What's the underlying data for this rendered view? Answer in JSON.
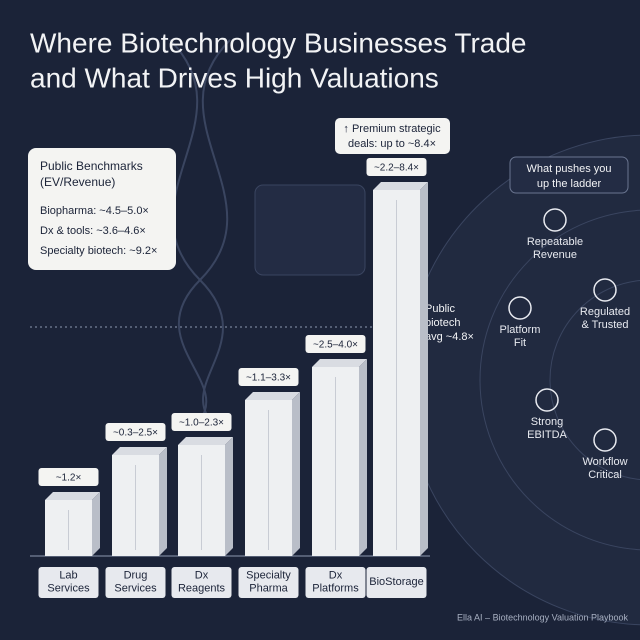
{
  "header": {
    "title_lines": [
      "Where Biotechnology Businesses Trade",
      "and What Drives High Valuations"
    ]
  },
  "benchmarks": {
    "title_lines": [
      "Public Benchmarks",
      "(EV/Revenue)"
    ],
    "rows": [
      "Biopharma: ~4.5–5.0×",
      "Dx & tools: ~3.6–4.6×",
      "Specialty biotech: ~9.2×"
    ]
  },
  "premium_callout": [
    "↑ Premium strategic",
    "deals: up to ~8.4×"
  ],
  "average_note": [
    "Public",
    "biotech",
    "avg ~4.8×"
  ],
  "segments": [
    {
      "name_lines": [
        "Lab",
        "Services"
      ],
      "range": "~1.2×"
    },
    {
      "name_lines": [
        "Drug",
        "Services"
      ],
      "range": "~0.3–2.5×"
    },
    {
      "name_lines": [
        "Dx",
        "Reagents"
      ],
      "range": "~1.0–2.3×"
    },
    {
      "name_lines": [
        "Specialty",
        "Pharma"
      ],
      "range": "~1.1–3.3×"
    },
    {
      "name_lines": [
        "Dx",
        "Platforms"
      ],
      "range": "~2.5–4.0×"
    },
    {
      "name_lines": [
        "BioStorage"
      ],
      "range": "~2.2–8.4×"
    }
  ],
  "drivers": {
    "title_lines": [
      "What pushes you",
      "up the ladder"
    ],
    "items": [
      {
        "label_lines": [
          "Repeatable",
          "Revenue"
        ]
      },
      {
        "label_lines": [
          "Regulated",
          "& Trusted"
        ]
      },
      {
        "label_lines": [
          "Platform",
          "Fit"
        ]
      },
      {
        "label_lines": [
          "Strong",
          "EBITDA"
        ]
      },
      {
        "label_lines": [
          "Workflow",
          "Critical"
        ]
      }
    ]
  },
  "footer": "Ella AI – Biotechnology Valuation Playbook"
}
